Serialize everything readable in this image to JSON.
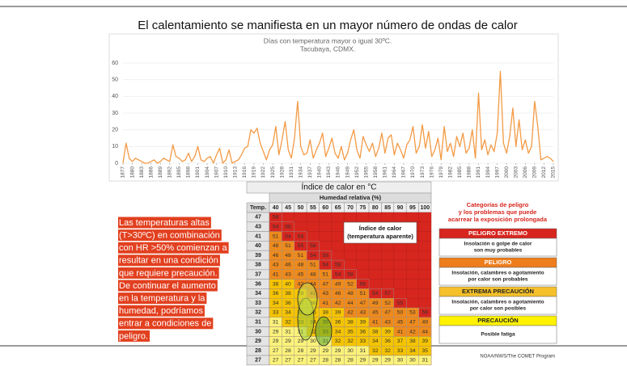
{
  "title": "El calentamiento se manifiesta en un mayor número de ondas de calor",
  "chart_data": {
    "type": "line",
    "title": "Días con temperatura mayor o igual 30ºC.",
    "subtitle": "Tacubaya, CDMX.",
    "x": [
      1877,
      1878,
      1879,
      1880,
      1881,
      1882,
      1883,
      1884,
      1885,
      1886,
      1887,
      1888,
      1889,
      1890,
      1891,
      1892,
      1893,
      1894,
      1895,
      1896,
      1897,
      1898,
      1899,
      1900,
      1901,
      1902,
      1903,
      1904,
      1905,
      1906,
      1907,
      1908,
      1909,
      1910,
      1911,
      1912,
      1913,
      1914,
      1915,
      1916,
      1917,
      1918,
      1919,
      1920,
      1921,
      1922,
      1923,
      1924,
      1925,
      1926,
      1927,
      1928,
      1929,
      1930,
      1931,
      1932,
      1933,
      1934,
      1935,
      1936,
      1937,
      1938,
      1939,
      1940,
      1941,
      1942,
      1943,
      1944,
      1945,
      1946,
      1947,
      1948,
      1949,
      1950,
      1951,
      1952,
      1953,
      1954,
      1955,
      1956,
      1957,
      1958,
      1959,
      1960,
      1961,
      1962,
      1963,
      1964,
      1965,
      1966,
      1967,
      1968,
      1969,
      1970,
      1971,
      1972,
      1973,
      1974,
      1975,
      1976,
      1977,
      1978,
      1979,
      1980,
      1981,
      1982,
      1983,
      1984,
      1985,
      1986,
      1987,
      1988,
      1989,
      1990,
      1991,
      1992,
      1993,
      1994,
      1995,
      1996,
      1997,
      1998,
      1999,
      2000,
      2001,
      2002,
      2003,
      2004,
      2005,
      2006,
      2007,
      2008,
      2009,
      2010,
      2011,
      2012,
      2013,
      2014,
      2015
    ],
    "values": [
      0,
      12,
      3,
      1,
      3,
      2,
      1,
      0,
      0,
      1,
      2,
      0,
      1,
      3,
      2,
      1,
      11,
      4,
      3,
      1,
      2,
      6,
      1,
      4,
      10,
      2,
      1,
      3,
      4,
      0,
      5,
      9,
      0,
      2,
      8,
      0,
      1,
      2,
      5,
      9,
      10,
      20,
      18,
      21,
      12,
      7,
      2,
      8,
      11,
      22,
      5,
      14,
      25,
      8,
      3,
      15,
      37,
      10,
      5,
      6,
      14,
      3,
      8,
      12,
      18,
      4,
      9,
      15,
      6,
      3,
      10,
      2,
      6,
      14,
      20,
      8,
      3,
      16,
      11,
      7,
      12,
      4,
      9,
      18,
      6,
      15,
      17,
      5,
      12,
      8,
      3,
      11,
      14,
      22,
      6,
      10,
      23,
      9,
      19,
      4,
      8,
      15,
      2,
      22,
      7,
      12,
      4,
      16,
      10,
      18,
      6,
      9,
      20,
      3,
      42,
      8,
      14,
      5,
      11,
      7,
      18,
      55,
      12,
      6,
      16,
      33,
      10,
      26,
      8,
      14,
      6,
      10,
      37,
      22,
      2,
      3,
      4,
      3,
      1
    ],
    "color": "#f39a45",
    "xlim": [
      1877,
      2015
    ],
    "xticks": [
      1877,
      1880,
      1883,
      1886,
      1889,
      1892,
      1895,
      1898,
      1901,
      1904,
      1907,
      1910,
      1913,
      1916,
      1919,
      1922,
      1925,
      1928,
      1931,
      1934,
      1937,
      1940,
      1943,
      1946,
      1949,
      1952,
      1955,
      1958,
      1961,
      1964,
      1967,
      1970,
      1973,
      1976,
      1979,
      1982,
      1985,
      1988,
      1991,
      1994,
      1997,
      2000,
      2003,
      2006,
      2009,
      2012,
      2015
    ],
    "ylim": [
      0,
      60
    ],
    "yticks": [
      0,
      10,
      20,
      30,
      40,
      50,
      60
    ],
    "grid": true
  },
  "text_block": {
    "lines": [
      "Las temperaturas altas",
      "(T>30ºC) en combinación",
      "con HR >50% comienzan a",
      "resultar en una condición",
      "que requiere precaución.",
      "De continuar el aumento",
      "en la temperatura y la",
      "humedad, podríamos",
      "entrar a condiciones de",
      "peligro."
    ]
  },
  "heat_table": {
    "title": "Índice de calor en °C",
    "subtitle": "Humedad relativa (%)",
    "corner": "Temp.",
    "columns": [
      40,
      45,
      50,
      55,
      60,
      65,
      70,
      75,
      80,
      85,
      90,
      95,
      100
    ],
    "rows": [
      {
        "temp": 47,
        "cells": [
          58
        ]
      },
      {
        "temp": 43,
        "cells": [
          54,
          58
        ]
      },
      {
        "temp": 41,
        "cells": [
          51,
          54,
          58
        ]
      },
      {
        "temp": 40,
        "cells": [
          48,
          51,
          55,
          58
        ]
      },
      {
        "temp": 39,
        "cells": [
          46,
          48,
          51,
          54,
          58
        ]
      },
      {
        "temp": 38,
        "cells": [
          43,
          46,
          48,
          51,
          54,
          58
        ]
      },
      {
        "temp": 37,
        "cells": [
          41,
          43,
          45,
          48,
          51,
          54,
          58
        ]
      },
      {
        "temp": 36,
        "cells": [
          38,
          40,
          42,
          44,
          47,
          49,
          52,
          56
        ]
      },
      {
        "temp": 34,
        "cells": [
          36,
          38,
          39,
          41,
          43,
          46,
          48,
          51,
          54,
          57
        ]
      },
      {
        "temp": 33,
        "cells": [
          34,
          36,
          37,
          38,
          41,
          42,
          44,
          47,
          49,
          52,
          55
        ]
      },
      {
        "temp": 32,
        "cells": [
          33,
          34,
          35,
          36,
          38,
          39,
          42,
          43,
          45,
          47,
          50,
          53,
          56
        ]
      },
      {
        "temp": 31,
        "cells": [
          31,
          32,
          33,
          34,
          35,
          36,
          38,
          39,
          41,
          43,
          45,
          47,
          49
        ]
      },
      {
        "temp": 30,
        "cells": [
          29,
          31,
          31,
          32,
          33,
          34,
          35,
          36,
          38,
          39,
          41,
          42,
          44
        ]
      },
      {
        "temp": 29,
        "cells": [
          29,
          29,
          29,
          30,
          31,
          32,
          32,
          33,
          34,
          36,
          37,
          38,
          39
        ]
      },
      {
        "temp": 28,
        "cells": [
          27,
          28,
          28,
          29,
          29,
          29,
          30,
          31,
          32,
          32,
          33,
          34,
          35
        ]
      },
      {
        "temp": 27,
        "cells": [
          27,
          27,
          27,
          27,
          28,
          28,
          28,
          29,
          29,
          29,
          30,
          30,
          31
        ]
      }
    ],
    "note_lines": [
      "Índice de calor",
      "(temperatura aparente)"
    ]
  },
  "categories_panel": {
    "heading": [
      "Categorías de peligro",
      "y los problemas que puede",
      "acarrear la exposición prolongada"
    ],
    "items": [
      {
        "name": "PELIGRO EXTREMO",
        "description": [
          "Insolación o golpe de calor",
          "son muy probables"
        ],
        "color": "#d7261e",
        "text_color": "#ffffff"
      },
      {
        "name": "PELIGRO",
        "description": [
          "Insolación, calambres o agotamiento",
          "por calor son probables"
        ],
        "color": "#ee7d1c",
        "text_color": "#ffffff"
      },
      {
        "name": "EXTREMA PRECAUCIÓN",
        "description": [
          "Insolación, calambres o agotamiento",
          "por calor son posibles"
        ],
        "color": "#f5c02a",
        "text_color": "#222222"
      },
      {
        "name": "PRECAUCIÓN",
        "description": [
          "Posible fatiga"
        ],
        "color": "#fff200",
        "text_color": "#222222"
      }
    ],
    "source": "NOAA/NWS/The COMET Program"
  }
}
